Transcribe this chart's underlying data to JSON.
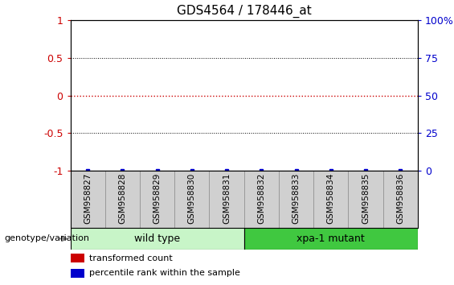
{
  "title": "GDS4564 / 178446_at",
  "samples": [
    "GSM958827",
    "GSM958828",
    "GSM958829",
    "GSM958830",
    "GSM958831",
    "GSM958832",
    "GSM958833",
    "GSM958834",
    "GSM958835",
    "GSM958836"
  ],
  "groups": [
    {
      "label": "wild type",
      "color": "#c8f5c8",
      "start": 0,
      "end": 5
    },
    {
      "label": "xpa-1 mutant",
      "color": "#40c840",
      "start": 5,
      "end": 10
    }
  ],
  "red_line_y": 0.0,
  "yticks_left": [
    -1,
    -0.5,
    0,
    0.5,
    1
  ],
  "yticks_right": [
    0,
    25,
    50,
    75,
    100
  ],
  "ylim": [
    -1.0,
    1.0
  ],
  "ylabel_left_color": "#cc0000",
  "ylabel_right_color": "#0000cc",
  "grid_yticks": [
    -0.5,
    0.5
  ],
  "legend_red_label": "transformed count",
  "legend_blue_label": "percentile rank within the sample",
  "genotype_label": "genotype/variation",
  "background_color": "#ffffff",
  "plot_bg_color": "#ffffff",
  "label_area_color": "#d0d0d0",
  "bar_edge_color": "#999999",
  "title_fontsize": 11
}
